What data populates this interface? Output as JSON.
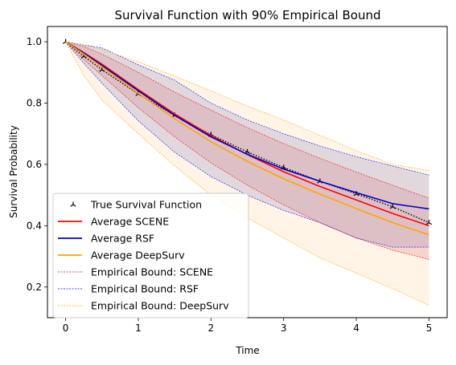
{
  "chart_data": {
    "type": "line",
    "title": "Survival Function with 90% Empirical Bound",
    "xlabel": "Time",
    "ylabel": "Survival Probability",
    "xlim": [
      -0.25,
      5.25
    ],
    "ylim": [
      0.1,
      1.05
    ],
    "xticks": [
      0,
      1,
      2,
      3,
      4,
      5
    ],
    "yticks": [
      0.2,
      0.4,
      0.6,
      0.8,
      1.0
    ],
    "xtick_labels": [
      "0",
      "1",
      "2",
      "3",
      "4",
      "5"
    ],
    "ytick_labels": [
      "0.2",
      "0.4",
      "0.6",
      "0.8",
      "1.0"
    ],
    "grid": false,
    "legend_position": "lower-left",
    "x": [
      0,
      0.25,
      0.5,
      1,
      1.5,
      2,
      2.5,
      3,
      3.5,
      4,
      4.5,
      5
    ],
    "series": [
      {
        "name": "True Survival Function",
        "color": "#000000",
        "style": "marker",
        "values": [
          1.0,
          0.953,
          0.909,
          0.83,
          0.76,
          0.697,
          0.641,
          0.59,
          0.545,
          0.504,
          0.462,
          0.41
        ]
      },
      {
        "name": "Average SCENE",
        "color": "#ff0000",
        "style": "solid",
        "values": [
          1.0,
          0.965,
          0.927,
          0.844,
          0.765,
          0.694,
          0.632,
          0.576,
          0.528,
          0.484,
          0.44,
          0.4
        ]
      },
      {
        "name": "Average RSF",
        "color": "#0000cc",
        "style": "solid",
        "values": [
          1.0,
          0.963,
          0.923,
          0.84,
          0.76,
          0.69,
          0.633,
          0.585,
          0.545,
          0.508,
          0.472,
          0.455
        ]
      },
      {
        "name": "Average DeepSurv",
        "color": "#ffa500",
        "style": "solid",
        "values": [
          1.0,
          0.96,
          0.918,
          0.832,
          0.749,
          0.674,
          0.61,
          0.553,
          0.503,
          0.456,
          0.41,
          0.37
        ]
      }
    ],
    "bounds": [
      {
        "name": "Empirical Bound: SCENE",
        "color": "#ff0000",
        "fill": "#d9828a",
        "lower": [
          1.0,
          0.942,
          0.89,
          0.785,
          0.69,
          0.605,
          0.532,
          0.468,
          0.41,
          0.36,
          0.32,
          0.29
        ],
        "upper": [
          1.0,
          0.985,
          0.96,
          0.9,
          0.836,
          0.777,
          0.72,
          0.668,
          0.62,
          0.575,
          0.532,
          0.49
        ]
      },
      {
        "name": "Empirical Bound: RSF",
        "color": "#0000ff",
        "fill": "#9090c8",
        "lower": [
          1.0,
          0.93,
          0.865,
          0.742,
          0.64,
          0.56,
          0.5,
          0.45,
          0.41,
          0.36,
          0.33,
          0.33
        ],
        "upper": [
          1.0,
          0.99,
          0.98,
          0.925,
          0.875,
          0.8,
          0.745,
          0.7,
          0.66,
          0.625,
          0.595,
          0.565
        ]
      },
      {
        "name": "Empirical Bound: DeepSurv",
        "color": "#ffa500",
        "fill": "#ffd8a0",
        "lower": [
          1.0,
          0.89,
          0.81,
          0.7,
          0.595,
          0.5,
          0.425,
          0.36,
          0.295,
          0.245,
          0.195,
          0.14
        ],
        "upper": [
          1.0,
          0.99,
          0.975,
          0.935,
          0.888,
          0.84,
          0.79,
          0.745,
          0.695,
          0.645,
          0.6,
          0.58
        ]
      }
    ],
    "legend_order": [
      "True Survival Function",
      "Average SCENE",
      "Average RSF",
      "Average DeepSurv",
      "Empirical Bound: SCENE",
      "Empirical Bound: RSF",
      "Empirical Bound: DeepSurv"
    ]
  }
}
